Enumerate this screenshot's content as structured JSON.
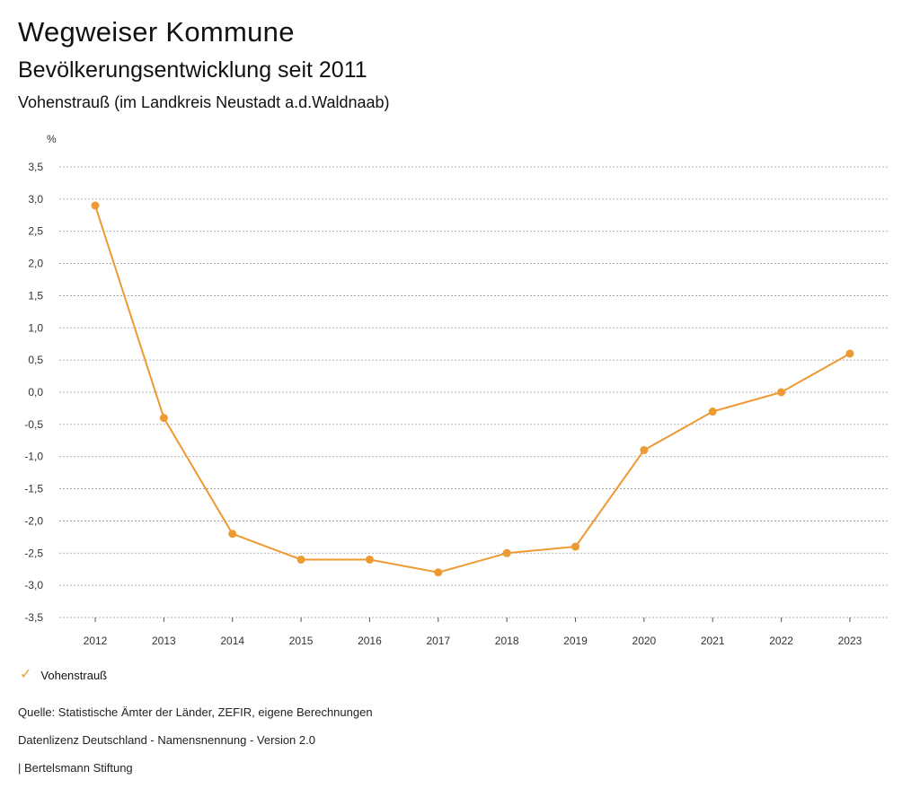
{
  "header": {
    "title": "Wegweiser Kommune",
    "subtitle": "Bevölkerungsentwicklung seit 2011",
    "region": "Vohenstrauß (im Landkreis Neustadt a.d.Waldnaab)"
  },
  "chart_data": {
    "type": "line",
    "title": "Bevölkerungsentwicklung seit 2011",
    "ylabel": "%",
    "xlabel": "",
    "categories": [
      "2012",
      "2013",
      "2014",
      "2015",
      "2016",
      "2017",
      "2018",
      "2019",
      "2020",
      "2021",
      "2022",
      "2023"
    ],
    "series": [
      {
        "name": "Vohenstrauß",
        "values": [
          2.9,
          -0.4,
          -2.2,
          -2.6,
          -2.6,
          -2.8,
          -2.5,
          -2.4,
          -0.9,
          -0.3,
          0.0,
          0.6
        ],
        "color": "#EE9A32"
      }
    ],
    "ylim": [
      -3.5,
      3.5
    ],
    "yticks": [
      "3,5",
      "3,0",
      "2,5",
      "2,0",
      "1,5",
      "1,0",
      "0,5",
      "0,0",
      "-0,5",
      "-1,0",
      "-1,5",
      "-2,0",
      "-2,5",
      "-3,0",
      "-3,5"
    ],
    "ytick_values": [
      3.5,
      3.0,
      2.5,
      2.0,
      1.5,
      1.0,
      0.5,
      0.0,
      -0.5,
      -1.0,
      -1.5,
      -2.0,
      -2.5,
      -3.0,
      -3.5
    ],
    "grid": true,
    "legend": "bottom-left"
  },
  "legend": {
    "label": "Vohenstrauß",
    "icon": "check-icon"
  },
  "footer": {
    "source": "Quelle: Statistische Ämter der Länder, ZEFIR, eigene Berechnungen",
    "license": "Datenlizenz Deutschland - Namensnennung - Version 2.0",
    "publisher": "| Bertelsmann Stiftung"
  }
}
